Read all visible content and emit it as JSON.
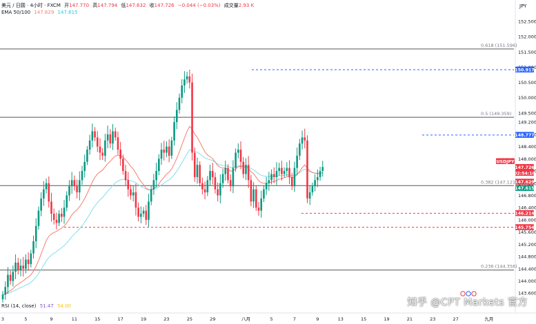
{
  "header": {
    "symbol": "美元 / 日圆 · 4小时 · FXCM",
    "open_label": "开",
    "open": "147.770",
    "high_label": "高",
    "high": "147.794",
    "low_label": "低",
    "low": "147.632",
    "close_label": "收",
    "close": "147.726",
    "change": "−0.044 (−0.03%)",
    "volume_label": "成交量",
    "volume": "2.93 K",
    "ema_label": "EMA 50/100",
    "ema50": "147.629",
    "ema100": "147.615"
  },
  "rsi_header": {
    "label": "RSI (14, close)",
    "value1": "51.47",
    "value2": "54.00"
  },
  "watermark": "知乎 @CPT Markets 官方",
  "colors": {
    "up": "#089981",
    "down": "#f23645",
    "ema50": "#f77c6e",
    "ema100": "#7fe0e8",
    "fib": "#555555",
    "blue_dash": "#2962ff",
    "red_dash": "#f23645",
    "label_blue": "#2962ff",
    "label_red": "#f23645",
    "label_green": "#089981"
  },
  "chart_data": {
    "type": "candlestick",
    "currency": "JPY",
    "ylim": [
      142.95,
      153.2
    ],
    "y_ticks": [
      "143.600",
      "144.000",
      "144.400",
      "144.800",
      "145.200",
      "145.600",
      "146.000",
      "146.400",
      "146.800",
      "147.200",
      "147.600",
      "148.000",
      "148.400",
      "148.800",
      "149.200",
      "149.500",
      "150.000",
      "150.500",
      "151.000",
      "151.500",
      "152.000",
      "152.500"
    ],
    "x_ticks": [
      {
        "label": "3",
        "bar": 0
      },
      {
        "label": "5",
        "bar": 9
      },
      {
        "label": "9",
        "bar": 19
      },
      {
        "label": "11",
        "bar": 28
      },
      {
        "label": "15",
        "bar": 37
      },
      {
        "label": "17",
        "bar": 46
      },
      {
        "label": "19",
        "bar": 55
      },
      {
        "label": "23",
        "bar": 64
      },
      {
        "label": "25",
        "bar": 73
      },
      {
        "label": "29",
        "bar": 82
      },
      {
        "label": "八月",
        "bar": 95
      },
      {
        "label": "5",
        "bar": 105
      },
      {
        "label": "7",
        "bar": 114
      },
      {
        "label": "9",
        "bar": 123
      },
      {
        "label": "13",
        "bar": 132
      },
      {
        "label": "15",
        "bar": 141
      },
      {
        "label": "19",
        "bar": 150
      },
      {
        "label": "21",
        "bar": 159
      },
      {
        "label": "23",
        "bar": 168
      },
      {
        "label": "27",
        "bar": 177
      },
      {
        "label": "九月",
        "bar": 190
      }
    ],
    "fib_levels": [
      {
        "label": "0.618 (151.596)",
        "value": 151.596
      },
      {
        "label": "0.5 (149.359)",
        "value": 149.359
      },
      {
        "label": "0.382 (147.121)",
        "value": 147.121
      },
      {
        "label": "0.236 (144.356)",
        "value": 144.356
      }
    ],
    "hlines": [
      {
        "value": 150.917,
        "style": "blue"
      },
      {
        "value": 148.777,
        "style": "blue"
      },
      {
        "value": 146.214,
        "style": "red"
      },
      {
        "value": 145.754,
        "style": "red"
      }
    ],
    "price_labels": [
      {
        "text": "150.917",
        "value": 150.917,
        "color": "blue"
      },
      {
        "text": "148.777",
        "value": 148.777,
        "color": "blue"
      },
      {
        "text": "USDJPY",
        "value": 147.726,
        "color": "red"
      },
      {
        "text": "147.726",
        "value": 147.726,
        "color": "red"
      },
      {
        "text": "02:54:10",
        "value": 147.726,
        "color": "red"
      },
      {
        "text": "147.629",
        "value": 147.629,
        "color": "red"
      },
      {
        "text": "147.615",
        "value": 147.615,
        "color": "green"
      },
      {
        "text": "146.214",
        "value": 146.214,
        "color": "red"
      },
      {
        "text": "145.754",
        "value": 145.754,
        "color": "red"
      }
    ],
    "close_path": [
      143.55,
      143.8,
      144.2,
      144.0,
      144.3,
      144.6,
      144.35,
      144.5,
      144.4,
      144.7,
      144.55,
      144.9,
      145.3,
      145.8,
      146.3,
      146.7,
      147.0,
      147.2,
      146.6,
      146.2,
      146.0,
      145.9,
      146.2,
      146.1,
      146.4,
      146.8,
      147.1,
      147.3,
      147.1,
      146.9,
      147.3,
      147.6,
      147.9,
      148.3,
      148.6,
      148.9,
      148.7,
      148.4,
      148.2,
      148.1,
      148.6,
      148.8,
      148.5,
      148.9,
      148.7,
      148.3,
      148.0,
      147.6,
      147.3,
      147.0,
      146.8,
      146.9,
      146.4,
      146.1,
      146.2,
      146.3,
      146.0,
      146.6,
      147.0,
      147.3,
      147.6,
      148.0,
      148.3,
      148.2,
      148.4,
      148.1,
      148.6,
      149.2,
      149.6,
      150.0,
      150.4,
      150.6,
      150.7,
      150.5,
      148.2,
      147.4,
      147.8,
      147.2,
      147.0,
      146.9,
      147.3,
      147.6,
      147.4,
      147.0,
      146.8,
      147.2,
      147.5,
      147.7,
      147.3,
      147.1,
      147.7,
      148.2,
      148.3,
      147.9,
      147.5,
      147.8,
      147.3,
      146.6,
      147.0,
      146.4,
      146.3,
      146.7,
      147.0,
      147.2,
      147.3,
      147.5,
      147.4,
      147.6,
      147.7,
      147.5,
      147.6,
      147.7,
      147.4,
      147.1,
      147.7,
      148.1,
      148.5,
      148.7,
      148.6,
      146.7,
      146.9,
      147.1,
      147.3,
      147.4,
      147.6,
      147.73
    ]
  }
}
